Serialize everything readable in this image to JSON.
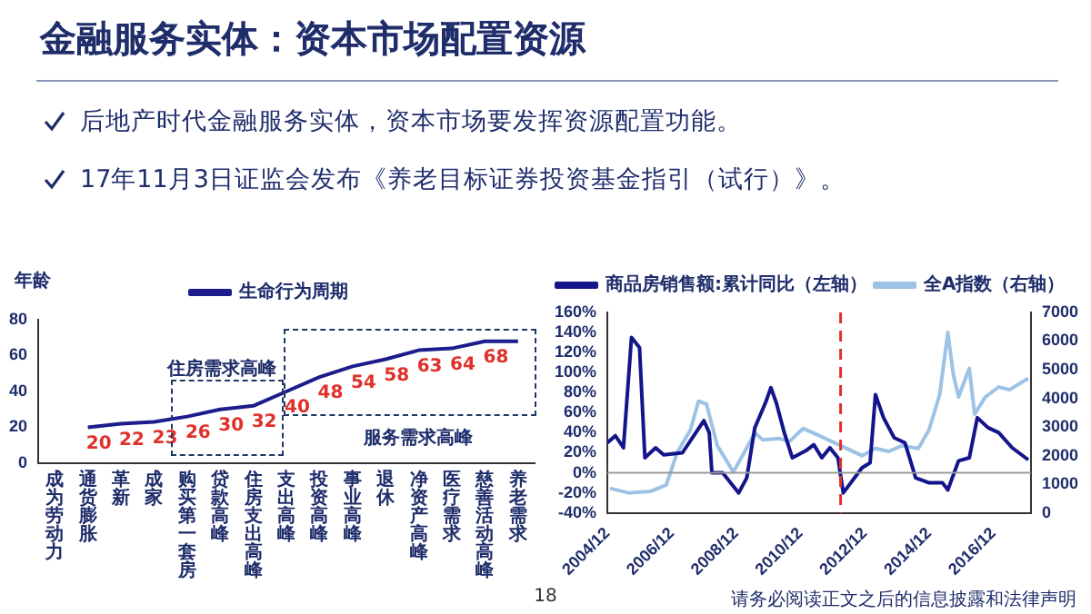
{
  "chart_data": [
    {
      "type": "line",
      "title": "金融服务实体：资本市场配置资源",
      "annotations": [
        "后地产时代金融服务实体，资本市场要发挥资源配置功能。",
        "17年11月3日证监会发布《养老目标证券投资基金指引（试行）》。",
        "18",
        "请务必阅读正文之后的信息披露和法律声明",
        "住房需求高峰",
        "服务需求高峰"
      ],
      "ylabel": "年龄",
      "categories": [
        "成为劳动力",
        "通货膨胀",
        "革新",
        "成家",
        "购买第一套房",
        "贷款高峰",
        "住房支出高峰",
        "支出高峰",
        "投资高峰",
        "事业高峰",
        "退休",
        "净资产高峰",
        "医疗需求",
        "慈善活动高峰",
        "养老需求"
      ],
      "series": [
        {
          "name": "生命行为周期",
          "color": "#1c1c8c",
          "values": [
            null,
            20,
            22,
            23,
            26,
            30,
            32,
            40,
            48,
            54,
            58,
            63,
            64,
            68,
            68
          ],
          "value_labels": [
            null,
            "20",
            "22",
            "23",
            "26",
            "30",
            "32",
            "40",
            "48",
            "54",
            "58",
            "63",
            "64",
            "68",
            null
          ]
        }
      ],
      "ylim": [
        0,
        80
      ],
      "yticks": [
        0,
        20,
        40,
        60,
        80
      ],
      "legend": "top",
      "marker": "none",
      "grid": false
    },
    {
      "type": "line",
      "series": [
        {
          "name": "商品房销售额:累计同比（左轴）",
          "color": "#14148c",
          "x": [
            "2004-12",
            "2005-03",
            "2005-06",
            "2005-09",
            "2005-12",
            "2006-02",
            "2006-06",
            "2006-09",
            "2007-04",
            "2007-09",
            "2007-12",
            "2008-02",
            "2008-03",
            "2008-07",
            "2009-01",
            "2009-04",
            "2009-07",
            "2009-11",
            "2010-01",
            "2010-03",
            "2010-06",
            "2010-09",
            "2011-02",
            "2011-05",
            "2011-08",
            "2011-11",
            "2012-02",
            "2012-04",
            "2012-11",
            "2013-02",
            "2013-04",
            "2013-07",
            "2013-11",
            "2014-03",
            "2014-07",
            "2014-12",
            "2015-05",
            "2015-07",
            "2015-11",
            "2016-03",
            "2016-06",
            "2016-10",
            "2017-02",
            "2017-07",
            "2018-01"
          ],
          "values": [
            30,
            37,
            25,
            135,
            125,
            15,
            25,
            18,
            20,
            40,
            52,
            40,
            0,
            0,
            -20,
            -5,
            45,
            70,
            85,
            70,
            40,
            15,
            22,
            28,
            15,
            25,
            15,
            -20,
            5,
            10,
            78,
            55,
            35,
            30,
            -5,
            -10,
            -10,
            -17,
            12,
            15,
            55,
            45,
            40,
            25,
            13
          ]
        },
        {
          "name": "全A指数（右轴）",
          "color": "#9cc3e6",
          "axis": "y2",
          "x": [
            "2005-01",
            "2005-08",
            "2006-04",
            "2006-10",
            "2007-02",
            "2007-07",
            "2007-10",
            "2008-01",
            "2008-05",
            "2008-11",
            "2009-03",
            "2009-07",
            "2009-10",
            "2010-04",
            "2010-08",
            "2011-01",
            "2011-07",
            "2012-03",
            "2012-11",
            "2013-04",
            "2013-09",
            "2014-02",
            "2014-08",
            "2014-12",
            "2015-04",
            "2015-07",
            "2015-09",
            "2015-11",
            "2016-03",
            "2016-05",
            "2016-09",
            "2017-02",
            "2017-06",
            "2018-01"
          ],
          "values": [
            860,
            700,
            750,
            980,
            2100,
            2900,
            3900,
            3800,
            2350,
            1430,
            2100,
            2800,
            2550,
            2600,
            2500,
            2950,
            2700,
            2350,
            2000,
            2250,
            2150,
            2350,
            2250,
            2900,
            4150,
            6300,
            4850,
            4050,
            5050,
            3450,
            4050,
            4400,
            4300,
            4700
          ]
        }
      ],
      "xlim": [
        "2004-12",
        "2018-02"
      ],
      "xticks": [
        {
          "value": "2004-12",
          "label": "2004/12"
        },
        {
          "value": "2006-12",
          "label": "2006/12"
        },
        {
          "value": "2008-12",
          "label": "2008/12"
        },
        {
          "value": "2010-12",
          "label": "2010/12"
        },
        {
          "value": "2012-12",
          "label": "2012/12"
        },
        {
          "value": "2014-12",
          "label": "2014/12"
        },
        {
          "value": "2016-12",
          "label": "2016/12"
        }
      ],
      "ylim": [
        -40,
        160
      ],
      "yticks": [
        {
          "value": -40,
          "label": "-40%"
        },
        {
          "value": -20,
          "label": "-20%"
        },
        {
          "value": 0,
          "label": "0%"
        },
        {
          "value": 20,
          "label": "20%"
        },
        {
          "value": 40,
          "label": "40%"
        },
        {
          "value": 60,
          "label": "60%"
        },
        {
          "value": 80,
          "label": "80%"
        },
        {
          "value": 100,
          "label": "100%"
        },
        {
          "value": 120,
          "label": "120%"
        },
        {
          "value": 140,
          "label": "140%"
        },
        {
          "value": 160,
          "label": "160%"
        }
      ],
      "y2lim": [
        0,
        7000
      ],
      "y2ticks": [
        0,
        1000,
        2000,
        3000,
        4000,
        5000,
        6000,
        7000
      ],
      "ref_lines": [
        {
          "axis": "x",
          "value": "2012-03",
          "color": "#e0302a",
          "line_style": "dashed"
        },
        {
          "axis": "y",
          "value": 0,
          "color": "#999999",
          "line_style": "solid"
        }
      ],
      "legend": "top left",
      "marker": "none",
      "grid": false
    }
  ]
}
